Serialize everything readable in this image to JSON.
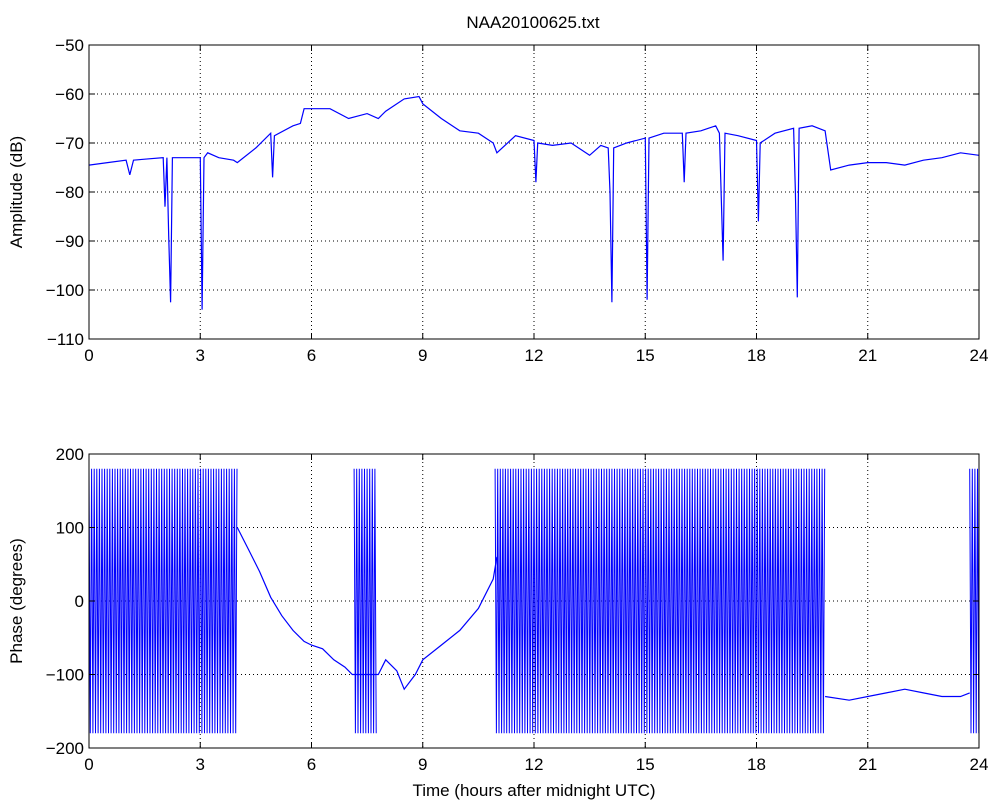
{
  "figure": {
    "title": "NAA20100625.txt"
  },
  "chart_data": [
    {
      "type": "line",
      "title": "NAA20100625.txt",
      "xlabel": "",
      "ylabel": "Amplitude (dB)",
      "xlim": [
        0,
        24
      ],
      "ylim": [
        -110,
        -50
      ],
      "xticks": [
        0,
        3,
        6,
        9,
        12,
        15,
        18,
        21,
        24
      ],
      "yticks": [
        -110,
        -100,
        -90,
        -80,
        -70,
        -60,
        -50
      ],
      "grid": true,
      "line_color": "#0000ff",
      "series": [
        {
          "points": [
            [
              0.0,
              -74.5
            ],
            [
              0.5,
              -74.0
            ],
            [
              1.0,
              -73.5
            ],
            [
              1.1,
              -76.5
            ],
            [
              1.2,
              -73.5
            ],
            [
              1.5,
              -73.3
            ],
            [
              2.0,
              -73.0
            ],
            [
              2.05,
              -83.0
            ],
            [
              2.1,
              -73.0
            ],
            [
              2.15,
              -89.0
            ],
            [
              2.2,
              -102.5
            ],
            [
              2.25,
              -73.0
            ],
            [
              2.5,
              -73.0
            ],
            [
              3.0,
              -73.0
            ],
            [
              3.05,
              -104.0
            ],
            [
              3.1,
              -73.0
            ],
            [
              3.2,
              -72.0
            ],
            [
              3.5,
              -73.0
            ],
            [
              3.9,
              -73.5
            ],
            [
              4.0,
              -74.0
            ],
            [
              4.5,
              -71.0
            ],
            [
              4.9,
              -68.0
            ],
            [
              4.95,
              -77.0
            ],
            [
              5.0,
              -68.5
            ],
            [
              5.5,
              -66.5
            ],
            [
              5.7,
              -66.0
            ],
            [
              5.8,
              -63.0
            ],
            [
              6.0,
              -63.0
            ],
            [
              6.5,
              -63.0
            ],
            [
              7.0,
              -65.0
            ],
            [
              7.5,
              -64.0
            ],
            [
              7.8,
              -65.0
            ],
            [
              8.0,
              -63.5
            ],
            [
              8.5,
              -61.0
            ],
            [
              8.9,
              -60.5
            ],
            [
              9.0,
              -62.0
            ],
            [
              9.5,
              -65.0
            ],
            [
              10.0,
              -67.5
            ],
            [
              10.5,
              -68.0
            ],
            [
              10.9,
              -70.0
            ],
            [
              11.0,
              -72.0
            ],
            [
              11.5,
              -68.5
            ],
            [
              12.0,
              -69.5
            ],
            [
              12.05,
              -78.0
            ],
            [
              12.1,
              -70.0
            ],
            [
              12.5,
              -70.5
            ],
            [
              13.0,
              -70.0
            ],
            [
              13.5,
              -72.5
            ],
            [
              13.8,
              -70.5
            ],
            [
              14.0,
              -71.0
            ],
            [
              14.05,
              -80.0
            ],
            [
              14.1,
              -102.5
            ],
            [
              14.15,
              -71.0
            ],
            [
              14.5,
              -70.0
            ],
            [
              15.0,
              -69.0
            ],
            [
              15.05,
              -102.0
            ],
            [
              15.1,
              -69.0
            ],
            [
              15.5,
              -68.0
            ],
            [
              16.0,
              -68.0
            ],
            [
              16.05,
              -78.0
            ],
            [
              16.1,
              -68.0
            ],
            [
              16.5,
              -67.5
            ],
            [
              16.9,
              -66.5
            ],
            [
              17.0,
              -68.0
            ],
            [
              17.1,
              -94.0
            ],
            [
              17.15,
              -68.0
            ],
            [
              17.5,
              -68.5
            ],
            [
              18.0,
              -69.5
            ],
            [
              18.05,
              -86.0
            ],
            [
              18.1,
              -70.0
            ],
            [
              18.5,
              -68.0
            ],
            [
              19.0,
              -67.0
            ],
            [
              19.05,
              -80.0
            ],
            [
              19.1,
              -101.5
            ],
            [
              19.15,
              -67.0
            ],
            [
              19.5,
              -66.5
            ],
            [
              19.85,
              -67.5
            ],
            [
              20.0,
              -75.5
            ],
            [
              20.5,
              -74.5
            ],
            [
              21.0,
              -74.0
            ],
            [
              21.5,
              -74.0
            ],
            [
              22.0,
              -74.5
            ],
            [
              22.5,
              -73.5
            ],
            [
              23.0,
              -73.0
            ],
            [
              23.5,
              -72.0
            ],
            [
              24.0,
              -72.5
            ]
          ]
        }
      ]
    },
    {
      "type": "line",
      "title": "",
      "xlabel": "Time (hours after midnight UTC)",
      "ylabel": "Phase (degrees)",
      "xlim": [
        0,
        24
      ],
      "ylim": [
        -200,
        200
      ],
      "xticks": [
        0,
        3,
        6,
        9,
        12,
        15,
        18,
        21,
        24
      ],
      "yticks": [
        -200,
        -100,
        0,
        100,
        200
      ],
      "grid": true,
      "line_color": "#0000ff",
      "wrapped_bands": [
        [
          0.0,
          4.0
        ],
        [
          7.15,
          7.75
        ],
        [
          10.95,
          19.85
        ],
        [
          23.75,
          24.0
        ]
      ],
      "series": [
        {
          "points": [
            [
              4.0,
              100.0
            ],
            [
              4.3,
              70.0
            ],
            [
              4.6,
              40.0
            ],
            [
              4.9,
              5.0
            ],
            [
              5.2,
              -20.0
            ],
            [
              5.5,
              -40.0
            ],
            [
              5.8,
              -55.0
            ],
            [
              6.0,
              -60.0
            ],
            [
              6.3,
              -65.0
            ],
            [
              6.6,
              -80.0
            ],
            [
              6.9,
              -90.0
            ],
            [
              7.1,
              -100.0
            ],
            [
              7.8,
              -100.0
            ],
            [
              8.0,
              -80.0
            ],
            [
              8.3,
              -95.0
            ],
            [
              8.5,
              -120.0
            ],
            [
              8.8,
              -100.0
            ],
            [
              9.0,
              -80.0
            ],
            [
              9.5,
              -60.0
            ],
            [
              10.0,
              -40.0
            ],
            [
              10.5,
              -10.0
            ],
            [
              10.9,
              30.0
            ],
            [
              11.0,
              60.0
            ]
          ]
        },
        {
          "points": [
            [
              19.85,
              -130.0
            ],
            [
              20.5,
              -135.0
            ],
            [
              21.0,
              -130.0
            ],
            [
              21.5,
              -125.0
            ],
            [
              22.0,
              -120.0
            ],
            [
              22.5,
              -125.0
            ],
            [
              23.0,
              -130.0
            ],
            [
              23.5,
              -130.0
            ],
            [
              23.75,
              -125.0
            ]
          ]
        }
      ]
    }
  ]
}
